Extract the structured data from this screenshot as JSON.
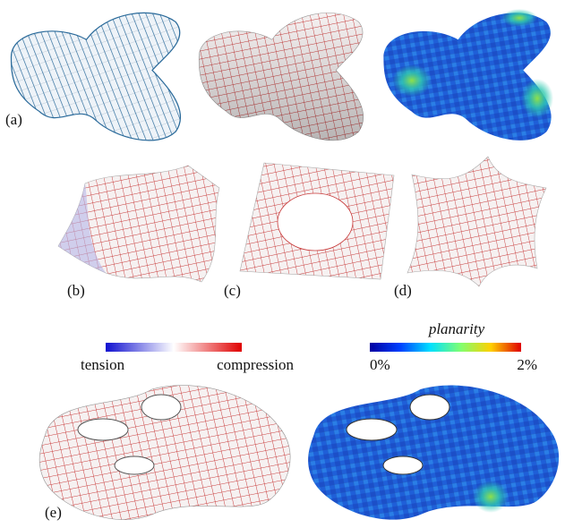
{
  "figure": {
    "panel_labels": [
      "(a)",
      "(b)",
      "(c)",
      "(d)",
      "(e)"
    ],
    "stress_legend": {
      "low": "tension",
      "high": "compression"
    },
    "planarity_legend": {
      "title": "planarity",
      "min": "0%",
      "max": "2%"
    }
  }
}
